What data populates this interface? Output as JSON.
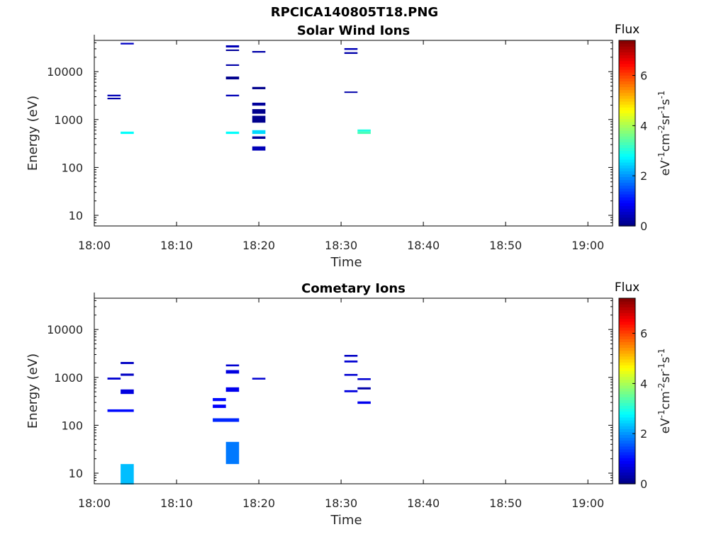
{
  "figure_title": "RPCICA140805T18.PNG",
  "chart_data": [
    {
      "type": "heatmap",
      "title": "Solar Wind Ions",
      "xlabel": "Time",
      "ylabel": "Energy (eV)",
      "x_ticks": [
        "18:00",
        "18:10",
        "18:20",
        "18:30",
        "18:40",
        "18:50",
        "19:00"
      ],
      "y_ticks": [
        "10",
        "100",
        "1000",
        "10000"
      ],
      "y_scale": "log",
      "x_range": [
        "18:00",
        "19:03"
      ],
      "y_range_eV": [
        6,
        45000
      ],
      "colorbar": {
        "title": "Flux",
        "range": [
          0,
          7.4
        ],
        "ticks": [
          "0",
          "2",
          "4",
          "6"
        ]
      },
      "cells": [
        {
          "t0": "18:01.6",
          "t1": "18:03.2",
          "e0": 2650,
          "e1": 2850,
          "flux": 0.3
        },
        {
          "t0": "18:03.2",
          "t1": "18:04.8",
          "e0": 37000,
          "e1": 40000,
          "flux": 0.5
        },
        {
          "t0": "18:01.6",
          "t1": "18:03.2",
          "e0": 3050,
          "e1": 3300,
          "flux": 0.4
        },
        {
          "t0": "18:03.2",
          "t1": "18:04.8",
          "e0": 500,
          "e1": 560,
          "flux": 2.8
        },
        {
          "t0": "18:16.0",
          "t1": "18:17.6",
          "e0": 32000,
          "e1": 35500,
          "flux": 0.4
        },
        {
          "t0": "18:16.0",
          "t1": "18:17.6",
          "e0": 27000,
          "e1": 29000,
          "flux": 0.2
        },
        {
          "t0": "18:16.0",
          "t1": "18:17.6",
          "e0": 13200,
          "e1": 14200,
          "flux": 0.3
        },
        {
          "t0": "18:16.0",
          "t1": "18:17.6",
          "e0": 6900,
          "e1": 7900,
          "flux": 0.1
        },
        {
          "t0": "18:16.0",
          "t1": "18:17.6",
          "e0": 3050,
          "e1": 3300,
          "flux": 0.4
        },
        {
          "t0": "18:16.0",
          "t1": "18:17.6",
          "e0": 500,
          "e1": 560,
          "flux": 2.8
        },
        {
          "t0": "18:19.2",
          "t1": "18:20.8",
          "e0": 25000,
          "e1": 27000,
          "flux": 0.3
        },
        {
          "t0": "18:19.2",
          "t1": "18:20.8",
          "e0": 4300,
          "e1": 4800,
          "flux": 0.1
        },
        {
          "t0": "18:19.2",
          "t1": "18:20.8",
          "e0": 1950,
          "e1": 2250,
          "flux": 0.2
        },
        {
          "t0": "18:19.2",
          "t1": "18:20.8",
          "e0": 1320,
          "e1": 1650,
          "flux": 0.1
        },
        {
          "t0": "18:19.2",
          "t1": "18:20.8",
          "e0": 860,
          "e1": 1200,
          "flux": 0.1
        },
        {
          "t0": "18:19.2",
          "t1": "18:20.8",
          "e0": 500,
          "e1": 600,
          "flux": 2.5
        },
        {
          "t0": "18:19.2",
          "t1": "18:20.8",
          "e0": 395,
          "e1": 445,
          "flux": 0.2
        },
        {
          "t0": "18:19.2",
          "t1": "18:20.8",
          "e0": 225,
          "e1": 275,
          "flux": 0.4
        },
        {
          "t0": "18:30.4",
          "t1": "18:32.0",
          "e0": 28500,
          "e1": 31000,
          "flux": 0.4
        },
        {
          "t0": "18:30.4",
          "t1": "18:32.0",
          "e0": 23500,
          "e1": 25500,
          "flux": 0.3
        },
        {
          "t0": "18:30.4",
          "t1": "18:32.0",
          "e0": 3600,
          "e1": 3850,
          "flux": 0.3
        },
        {
          "t0": "18:32.0",
          "t1": "18:33.6",
          "e0": 560,
          "e1": 620,
          "flux": 3.0
        },
        {
          "t0": "18:32.0",
          "t1": "18:33.6",
          "e0": 500,
          "e1": 560,
          "flux": 3.3
        }
      ]
    },
    {
      "type": "heatmap",
      "title": "Cometary Ions",
      "xlabel": "Time",
      "ylabel": "Energy (eV)",
      "x_ticks": [
        "18:00",
        "18:10",
        "18:20",
        "18:30",
        "18:40",
        "18:50",
        "19:00"
      ],
      "y_ticks": [
        "10",
        "100",
        "1000",
        "10000"
      ],
      "y_scale": "log",
      "x_range": [
        "18:00",
        "19:03"
      ],
      "y_range_eV": [
        6,
        45000
      ],
      "colorbar": {
        "title": "Flux",
        "range": [
          0,
          7.4
        ],
        "ticks": [
          "0",
          "2",
          "4",
          "6"
        ]
      },
      "cells": [
        {
          "t0": "18:01.6",
          "t1": "18:03.2",
          "e0": 900,
          "e1": 990,
          "flux": 0.6
        },
        {
          "t0": "18:01.6",
          "t1": "18:04.8",
          "e0": 190,
          "e1": 215,
          "flux": 1.0
        },
        {
          "t0": "18:03.2",
          "t1": "18:04.8",
          "e0": 1900,
          "e1": 2100,
          "flux": 0.5
        },
        {
          "t0": "18:03.2",
          "t1": "18:04.8",
          "e0": 1080,
          "e1": 1200,
          "flux": 0.5
        },
        {
          "t0": "18:03.2",
          "t1": "18:04.8",
          "e0": 450,
          "e1": 560,
          "flux": 0.7
        },
        {
          "t0": "18:03.2",
          "t1": "18:04.8",
          "e0": 5.8,
          "e1": 15.5,
          "flux": 2.3
        },
        {
          "t0": "18:14.4",
          "t1": "18:16.0",
          "e0": 320,
          "e1": 370,
          "flux": 1.0
        },
        {
          "t0": "18:14.4",
          "t1": "18:16.0",
          "e0": 230,
          "e1": 270,
          "flux": 0.9
        },
        {
          "t0": "18:14.4",
          "t1": "18:17.6",
          "e0": 118,
          "e1": 140,
          "flux": 1.2
        },
        {
          "t0": "18:16.0",
          "t1": "18:17.6",
          "e0": 1700,
          "e1": 1860,
          "flux": 0.6
        },
        {
          "t0": "18:16.0",
          "t1": "18:17.6",
          "e0": 1200,
          "e1": 1420,
          "flux": 0.7
        },
        {
          "t0": "18:16.0",
          "t1": "18:17.6",
          "e0": 500,
          "e1": 620,
          "flux": 0.8
        },
        {
          "t0": "18:16.0",
          "t1": "18:17.6",
          "e0": 15.5,
          "e1": 45,
          "flux": 1.8
        },
        {
          "t0": "18:19.2",
          "t1": "18:20.8",
          "e0": 900,
          "e1": 980,
          "flux": 0.6
        },
        {
          "t0": "18:30.4",
          "t1": "18:32.0",
          "e0": 2700,
          "e1": 2950,
          "flux": 0.5
        },
        {
          "t0": "18:30.4",
          "t1": "18:32.0",
          "e0": 2050,
          "e1": 2250,
          "flux": 0.6
        },
        {
          "t0": "18:30.4",
          "t1": "18:32.0",
          "e0": 1080,
          "e1": 1180,
          "flux": 0.6
        },
        {
          "t0": "18:30.4",
          "t1": "18:32.0",
          "e0": 490,
          "e1": 540,
          "flux": 0.7
        },
        {
          "t0": "18:32.0",
          "t1": "18:33.6",
          "e0": 880,
          "e1": 960,
          "flux": 0.6
        },
        {
          "t0": "18:32.0",
          "t1": "18:33.6",
          "e0": 560,
          "e1": 620,
          "flux": 0.3
        },
        {
          "t0": "18:32.0",
          "t1": "18:33.6",
          "e0": 280,
          "e1": 315,
          "flux": 0.8
        }
      ]
    }
  ]
}
